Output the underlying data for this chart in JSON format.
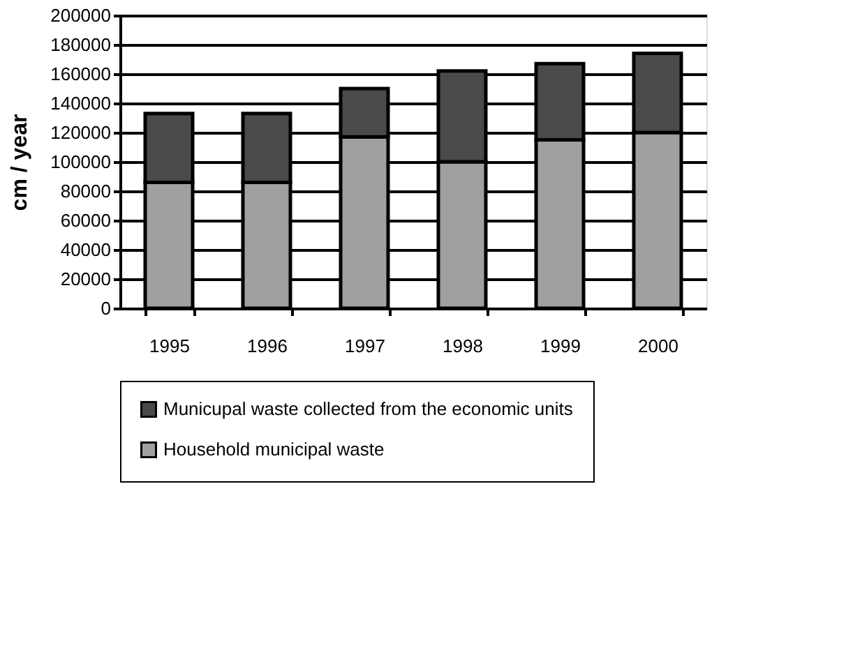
{
  "chart_data": {
    "type": "bar",
    "ylabel": "cm / year",
    "stacked": true,
    "categories": [
      "1995",
      "1996",
      "1997",
      "1998",
      "1999",
      "2000"
    ],
    "series": [
      {
        "name": "Household municipal waste",
        "color": "#a0a0a0",
        "values": [
          86000,
          86000,
          117000,
          100000,
          115000,
          120000
        ]
      },
      {
        "name": "Municupal waste collected from the economic units",
        "color": "#4a4a4a",
        "values": [
          47000,
          47000,
          33000,
          62000,
          52000,
          54000
        ]
      }
    ],
    "ylim": [
      0,
      200000
    ],
    "yticks": [
      0,
      20000,
      40000,
      60000,
      80000,
      100000,
      120000,
      140000,
      160000,
      180000,
      200000
    ],
    "grid": "y",
    "legend": "bottom"
  }
}
